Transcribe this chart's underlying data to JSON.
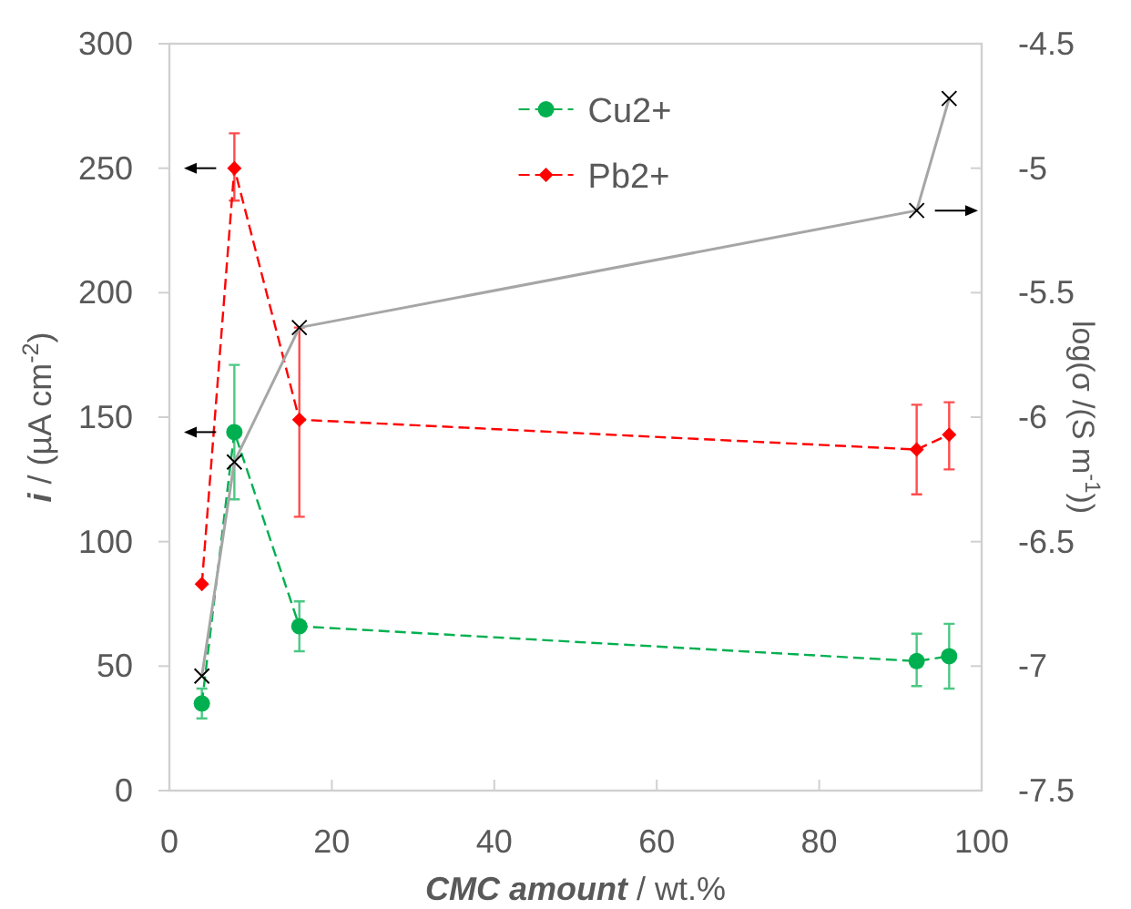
{
  "chart_data": {
    "type": "line",
    "xlabel": "CMC amount / wt.%",
    "ylabel": "i / (µA cm$^{-2}$)",
    "y2label": "log(σ /(S m$^{-1}$))",
    "x": [
      4,
      8,
      16,
      92,
      96
    ],
    "series": [
      {
        "name": "Cu2+",
        "color": "#00b050",
        "values": [
          35,
          144,
          66,
          52,
          54
        ],
        "errors": [
          [
            29,
            41
          ],
          [
            117,
            171
          ],
          [
            56,
            76
          ],
          [
            42,
            63
          ],
          [
            41,
            67
          ]
        ],
        "marker": "circle",
        "line_style": "dashed"
      },
      {
        "name": "Pb2+",
        "color": "#ff0000",
        "values": [
          83,
          250,
          149,
          137,
          143
        ],
        "errors": [
          null,
          [
            237,
            264
          ],
          [
            110,
            186
          ],
          [
            119,
            155
          ],
          [
            129,
            156
          ]
        ],
        "marker": "diamond",
        "line_style": "dashed"
      },
      {
        "color": "#a6a6a6",
        "values": [
          -7.04,
          -6.18,
          -5.64,
          -5.17,
          -4.72
        ],
        "axis": "y2",
        "marker": "cross",
        "line_style": "solid"
      }
    ],
    "xlim": [
      0,
      100
    ],
    "xticks": [
      0,
      20,
      40,
      60,
      80,
      100
    ],
    "ylim": [
      0,
      300
    ],
    "yticks": [
      0,
      50,
      100,
      150,
      200,
      250,
      300
    ],
    "y2lim": [
      -7.5,
      -4.5
    ],
    "y2ticks": [
      -7.5,
      -7,
      -6.5,
      -6,
      -5.5,
      -5,
      -4.5
    ],
    "grid": false,
    "legend": "top"
  }
}
